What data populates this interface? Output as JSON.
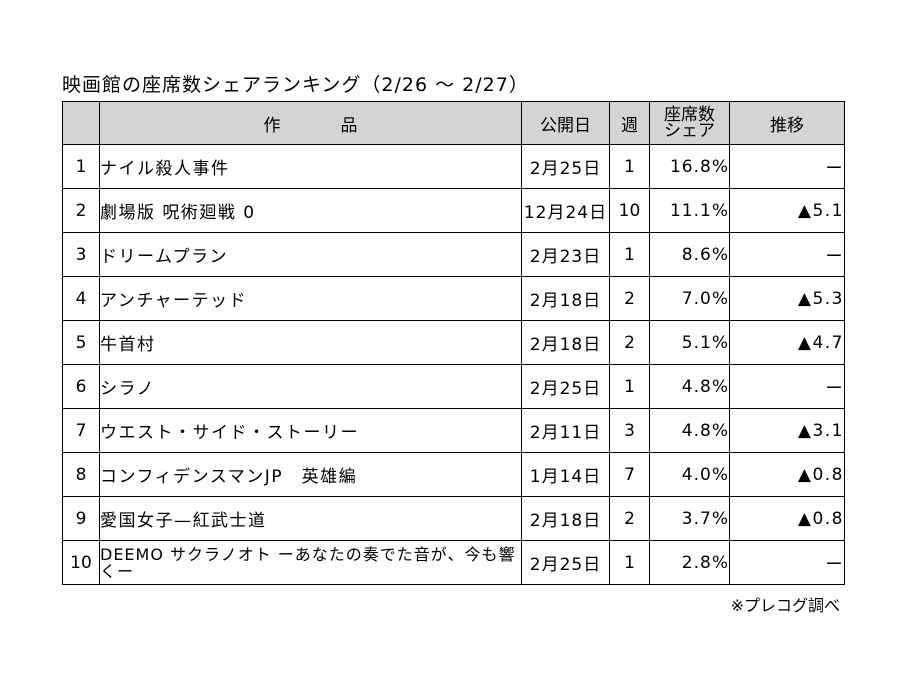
{
  "title": "映画館の座席数シェアランキング（2/26 〜 2/27）",
  "headers": {
    "rank": "",
    "title": "作品",
    "release": "公開日",
    "weeks": "週",
    "share_line1": "座席数",
    "share_line2": "シェア",
    "trend": "推移"
  },
  "rows": [
    {
      "rank": "1",
      "title": "ナイル殺人事件",
      "release": "2月25日",
      "weeks": "1",
      "share": "16.8%",
      "trend": "ー"
    },
    {
      "rank": "2",
      "title": "劇場版 呪術廻戦 0",
      "release": "12月24日",
      "weeks": "10",
      "share": "11.1%",
      "trend": "▲5.1"
    },
    {
      "rank": "3",
      "title": "ドリームプラン",
      "release": "2月23日",
      "weeks": "1",
      "share": "8.6%",
      "trend": "ー"
    },
    {
      "rank": "4",
      "title": "アンチャーテッド",
      "release": "2月18日",
      "weeks": "2",
      "share": "7.0%",
      "trend": "▲5.3"
    },
    {
      "rank": "5",
      "title": "牛首村",
      "release": "2月18日",
      "weeks": "2",
      "share": "5.1%",
      "trend": "▲4.7"
    },
    {
      "rank": "6",
      "title": "シラノ",
      "release": "2月25日",
      "weeks": "1",
      "share": "4.8%",
      "trend": "ー"
    },
    {
      "rank": "7",
      "title": "ウエスト・サイド・ストーリー",
      "release": "2月11日",
      "weeks": "3",
      "share": "4.8%",
      "trend": "▲3.1"
    },
    {
      "rank": "8",
      "title": "コンフィデンスマンJP　英雄編",
      "release": "1月14日",
      "weeks": "7",
      "share": "4.0%",
      "trend": "▲0.8"
    },
    {
      "rank": "9",
      "title": "愛国女子—紅武士道",
      "release": "2月18日",
      "weeks": "2",
      "share": "3.7%",
      "trend": "▲0.8"
    },
    {
      "rank": "10",
      "title": "DEEMO サクラノオト ーあなたの奏でた音が、今も響くー",
      "release": "2月25日",
      "weeks": "1",
      "share": "2.8%",
      "trend": "ー"
    }
  ],
  "source": "※プレコグ調べ"
}
